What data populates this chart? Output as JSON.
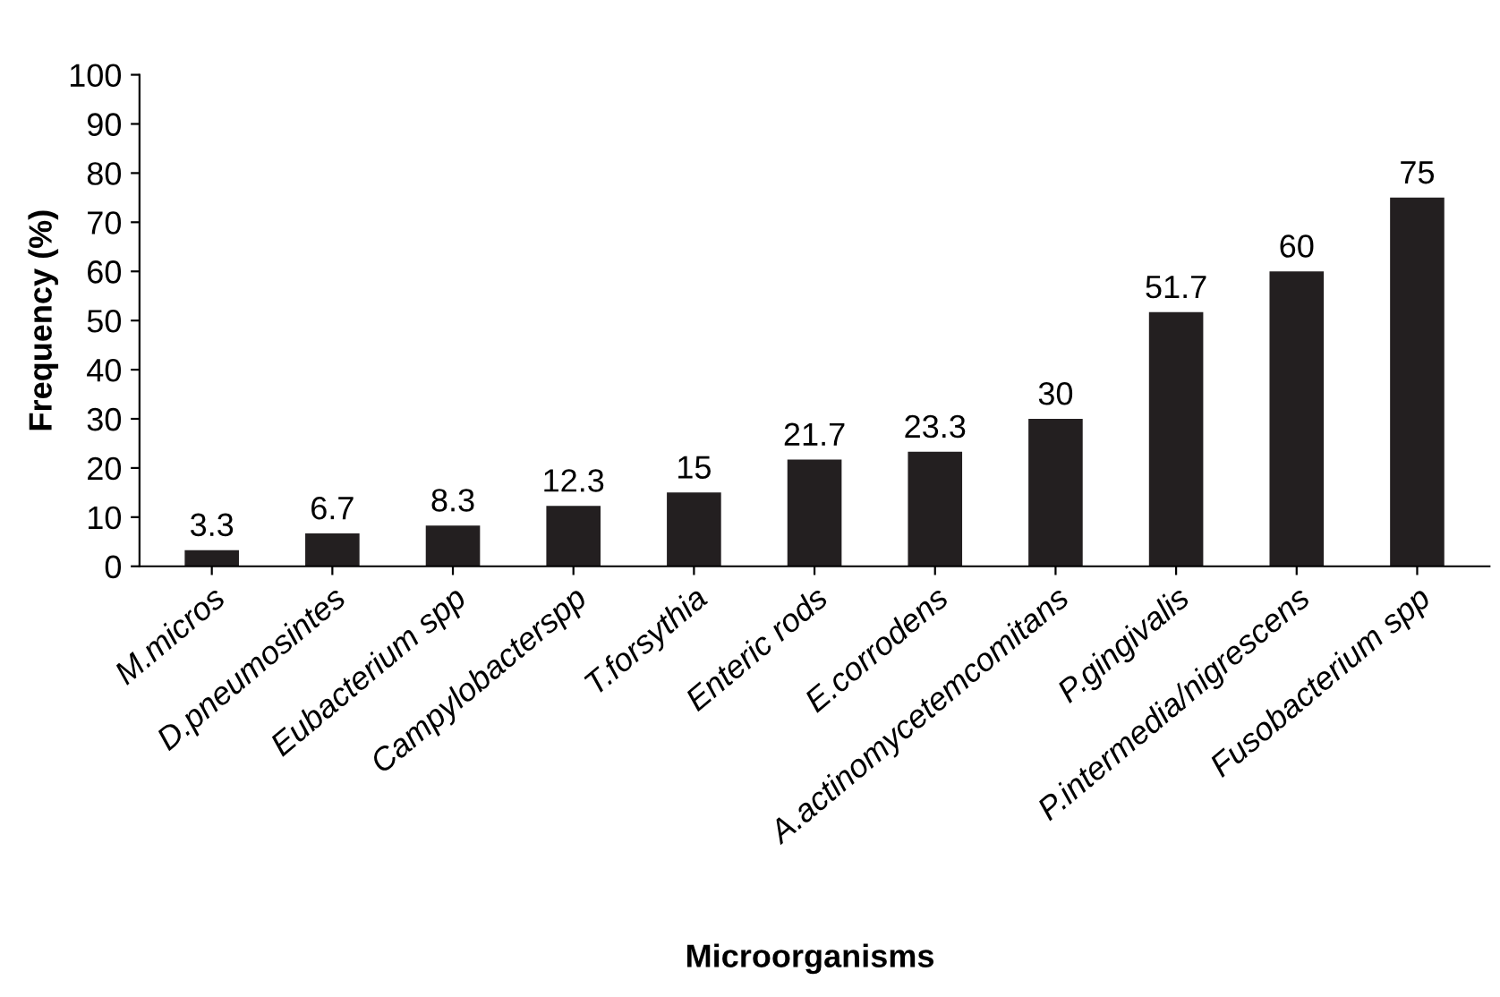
{
  "chart_data": {
    "type": "bar",
    "xlabel": "Microorganisms",
    "ylabel": "Frequency (%)",
    "categories": [
      "M.micros",
      "D.pneumosintes",
      "Eubacterium spp",
      "Campylobacterspp",
      "T.forsythia",
      "Enteric rods",
      "E.corrodens",
      "A.actinomycetemcomitans",
      "P.gingivalis",
      "P.intermedia/nigrescens",
      "Fusobacterium spp"
    ],
    "values": [
      3.3,
      6.7,
      8.3,
      12.3,
      15,
      21.7,
      23.3,
      30,
      51.7,
      60,
      75
    ],
    "color": "#231f20",
    "ylim": [
      0,
      100
    ],
    "yticks": [
      0,
      10,
      20,
      30,
      40,
      50,
      60,
      70,
      80,
      90,
      100
    ],
    "data_labels": true,
    "grid": false
  }
}
